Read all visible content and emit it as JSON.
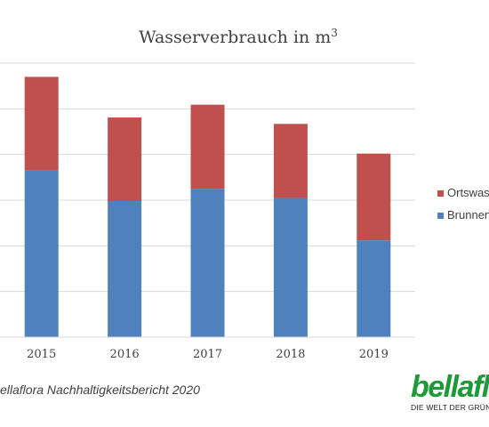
{
  "chart_data": {
    "type": "bar",
    "stacked": true,
    "title": "Wasserverbrauch in m",
    "title_superscript": "3",
    "categories": [
      "2015",
      "2016",
      "2017",
      "2018",
      "2019"
    ],
    "series": [
      {
        "name": "Brunnen",
        "color": "#4f81bd",
        "values": [
          3.65,
          2.98,
          3.25,
          3.05,
          2.12
        ]
      },
      {
        "name": "Ortswas",
        "color": "#c0504d",
        "values": [
          2.05,
          1.83,
          1.84,
          1.62,
          1.9
        ]
      }
    ],
    "ylim": [
      0,
      6
    ],
    "grid": true,
    "legend": "right"
  },
  "source": "ellaflora Nachhaltigkeitsbericht 2020",
  "logo": {
    "word": "bellafl",
    "tagline": "DIE WELT DER GRÜNE",
    "color": "#1f9a3a"
  }
}
